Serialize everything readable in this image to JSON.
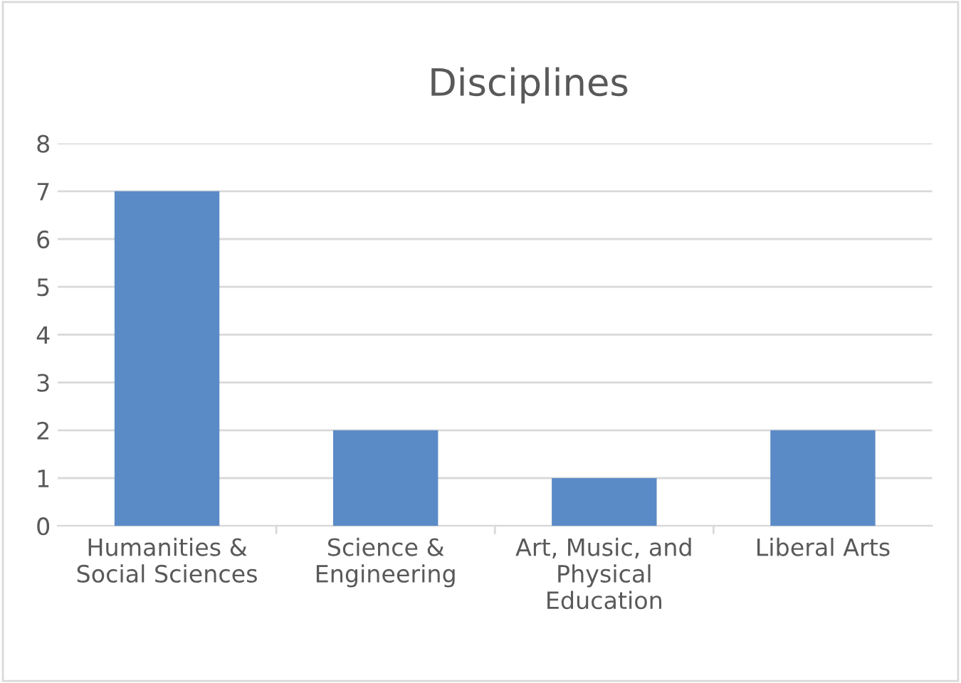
{
  "chart_data": {
    "type": "bar",
    "title": "Disciplines",
    "categories": [
      "Humanities &\nSocial Sciences",
      "Science &\nEngineering",
      "Art, Music, and\nPhysical\nEducation",
      "Liberal Arts"
    ],
    "values": [
      7,
      2,
      1,
      2
    ],
    "color": "#5b8bc7",
    "ylim": [
      0,
      8
    ],
    "yticks": [
      0,
      1,
      2,
      3,
      4,
      5,
      6,
      7,
      8
    ],
    "grid": "y"
  }
}
